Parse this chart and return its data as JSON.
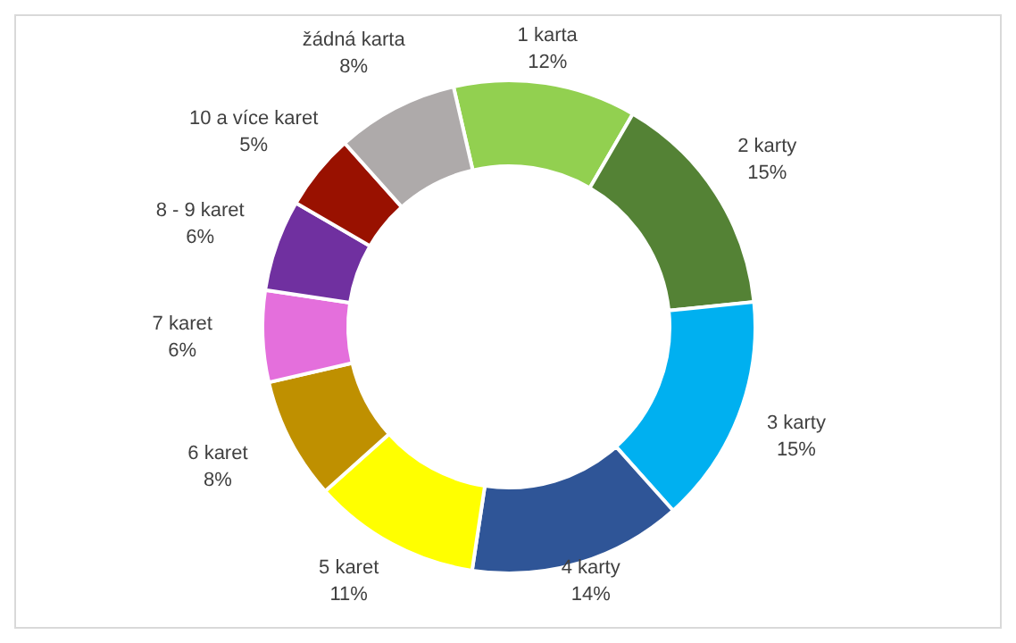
{
  "chart_data": {
    "type": "donut",
    "categories": [
      "1 karta",
      "2 karty",
      "3 karty",
      "4 karty",
      "5 karet",
      "6 karet",
      "7 karet",
      "8 - 9 karet",
      "10 a více karet",
      "žádná karta"
    ],
    "values": [
      12,
      15,
      15,
      14,
      11,
      8,
      6,
      6,
      5,
      8
    ],
    "value_labels": [
      "12%",
      "15%",
      "15%",
      "14%",
      "11%",
      "8%",
      "6%",
      "6%",
      "5%",
      "8%"
    ],
    "colors": [
      "#92d050",
      "#548235",
      "#00b0f0",
      "#2f5597",
      "#ffff00",
      "#bf9000",
      "#e46fdc",
      "#7030a0",
      "#991100",
      "#aeaaaa"
    ],
    "legend": false
  }
}
